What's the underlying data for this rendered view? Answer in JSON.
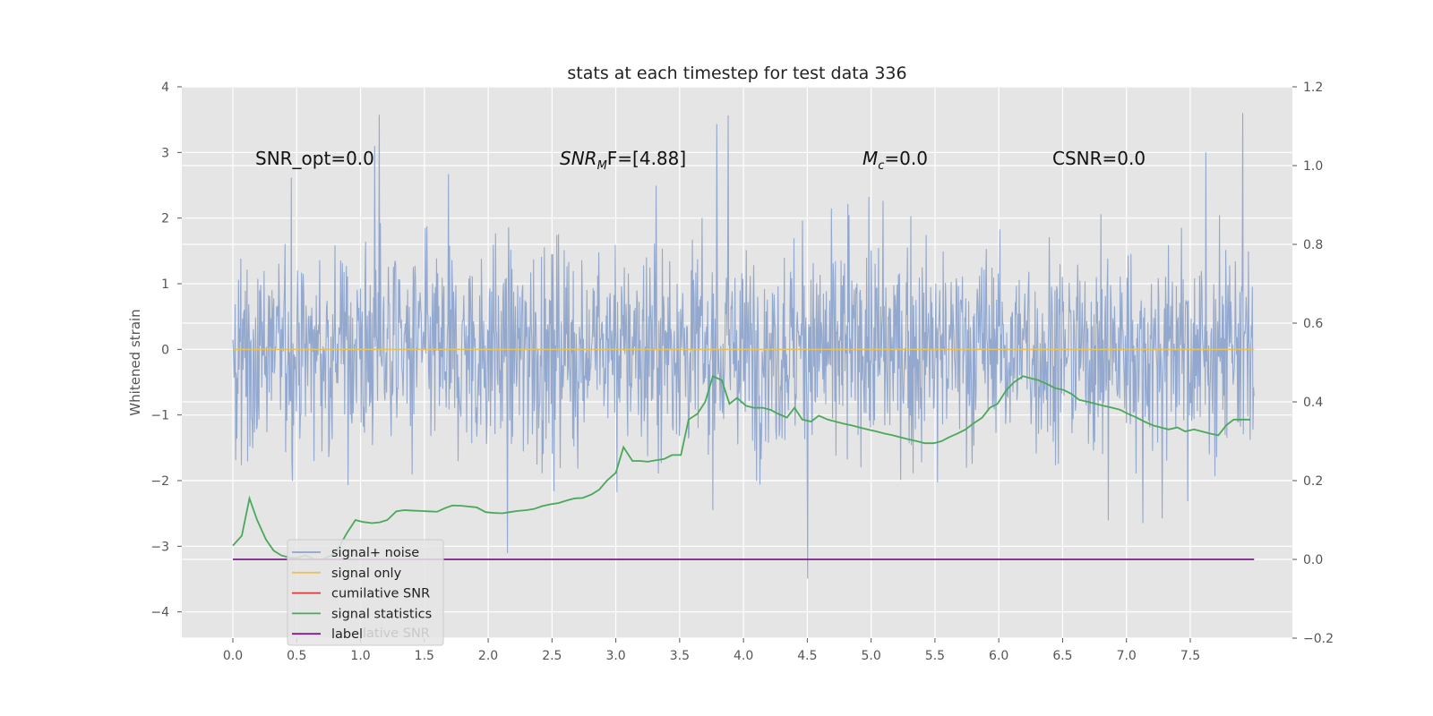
{
  "chart_data": {
    "type": "line",
    "title": "stats at each timestep for test data 336",
    "ylabel": "Whitened strain",
    "xlim": [
      -0.4,
      8.3
    ],
    "ylim": [
      -4.4,
      4.0
    ],
    "y2lim": [
      -0.2,
      1.2
    ],
    "x_ticks": [
      "0.0",
      "0.5",
      "1.0",
      "1.5",
      "2.0",
      "2.5",
      "3.0",
      "3.5",
      "4.0",
      "4.5",
      "5.0",
      "5.5",
      "6.0",
      "6.5",
      "7.0",
      "7.5"
    ],
    "y_ticks": [
      "4",
      "3",
      "2",
      "1",
      "0",
      "−1",
      "−2",
      "−3",
      "−4"
    ],
    "y2_ticks": [
      "1.2",
      "1.0",
      "0.8",
      "0.6",
      "0.4",
      "0.2",
      "0.0",
      "−0.2"
    ],
    "grid": true,
    "legend_position": "lower-left",
    "annotations": {
      "snr_opt": "SNR_opt=0.0",
      "snr_mf_base": "SNR",
      "snr_mf_sub": "M",
      "snr_mf_rest": "F=[4.88]",
      "mc_base": "M",
      "mc_sub": "c",
      "mc_rest": "=0.0",
      "csnr": "CSNR=0.0"
    },
    "legend": [
      {
        "label": "signal+ noise",
        "color": "#8ea4cc"
      },
      {
        "label": "signal only",
        "color": "#e8c15a"
      },
      {
        "label": "cumilative SNR",
        "color": "#d43f3a"
      },
      {
        "label": "signal statistics",
        "color": "#4aa85a"
      },
      {
        "label": "label",
        "color": "#7b1f86"
      }
    ],
    "legend_ghost_text": "lative SNR",
    "series": [
      {
        "name": "signal+ noise",
        "axis": "left",
        "style": "dense noisy trace",
        "x_range": [
          0.0,
          8.0
        ],
        "envelope_typical": [
          -2.2,
          2.2
        ],
        "envelope_extreme": [
          -4.0,
          3.6
        ],
        "color": "#8ea4cc"
      },
      {
        "name": "signal only",
        "axis": "left",
        "x": [
          0.0,
          8.0
        ],
        "y": [
          0.0,
          0.0
        ],
        "color": "#e8c15a"
      },
      {
        "name": "signal statistics",
        "axis": "right",
        "color": "#4aa85a",
        "x": [
          0.0,
          0.07,
          0.13,
          0.19,
          0.26,
          0.32,
          0.38,
          0.45,
          0.51,
          0.57,
          0.64,
          0.7,
          0.77,
          0.83,
          0.89,
          0.96,
          1.02,
          1.09,
          1.15,
          1.21,
          1.28,
          1.34,
          1.4,
          1.47,
          1.53,
          1.6,
          1.66,
          1.72,
          1.79,
          1.85,
          1.91,
          1.98,
          2.04,
          2.11,
          2.17,
          2.23,
          2.3,
          2.36,
          2.42,
          2.49,
          2.55,
          2.62,
          2.68,
          2.74,
          2.81,
          2.87,
          2.93,
          3.0,
          3.06,
          3.13,
          3.19,
          3.25,
          3.32,
          3.38,
          3.44,
          3.51,
          3.57,
          3.64,
          3.7,
          3.76,
          3.83,
          3.89,
          3.95,
          4.02,
          4.08,
          4.15,
          4.21,
          4.27,
          4.34,
          4.4,
          4.46,
          4.53,
          4.59,
          4.66,
          4.72,
          4.78,
          4.85,
          4.91,
          4.97,
          5.04,
          5.1,
          5.17,
          5.23,
          5.29,
          5.36,
          5.42,
          5.49,
          5.55,
          5.61,
          5.68,
          5.74,
          5.8,
          5.87,
          5.93,
          5.99,
          6.06,
          6.12,
          6.19,
          6.25,
          6.31,
          6.38,
          6.44,
          6.51,
          6.57,
          6.63,
          6.7,
          6.76,
          6.82,
          6.89,
          6.95,
          7.01,
          7.08,
          7.14,
          7.21,
          7.27,
          7.33,
          7.4,
          7.46,
          7.53,
          7.59,
          7.65,
          7.72,
          7.78,
          7.84,
          7.91,
          7.97
        ],
        "y": [
          0.035,
          0.06,
          0.155,
          0.1,
          0.05,
          0.022,
          0.01,
          0.004,
          0.004,
          0.01,
          0.0,
          0.0,
          0.01,
          0.03,
          0.065,
          0.1,
          0.095,
          0.092,
          0.094,
          0.1,
          0.122,
          0.125,
          0.124,
          0.123,
          0.122,
          0.121,
          0.13,
          0.137,
          0.136,
          0.134,
          0.132,
          0.12,
          0.118,
          0.117,
          0.12,
          0.123,
          0.125,
          0.128,
          0.135,
          0.14,
          0.143,
          0.15,
          0.155,
          0.156,
          0.165,
          0.177,
          0.2,
          0.22,
          0.285,
          0.25,
          0.25,
          0.248,
          0.252,
          0.255,
          0.265,
          0.265,
          0.355,
          0.37,
          0.4,
          0.465,
          0.455,
          0.395,
          0.41,
          0.39,
          0.385,
          0.385,
          0.38,
          0.37,
          0.36,
          0.385,
          0.355,
          0.35,
          0.365,
          0.355,
          0.35,
          0.345,
          0.34,
          0.335,
          0.33,
          0.325,
          0.32,
          0.315,
          0.31,
          0.305,
          0.3,
          0.295,
          0.295,
          0.3,
          0.31,
          0.32,
          0.33,
          0.345,
          0.36,
          0.385,
          0.395,
          0.43,
          0.45,
          0.465,
          0.46,
          0.455,
          0.445,
          0.435,
          0.43,
          0.42,
          0.405,
          0.4,
          0.395,
          0.39,
          0.385,
          0.38,
          0.37,
          0.36,
          0.35,
          0.34,
          0.335,
          0.33,
          0.335,
          0.325,
          0.33,
          0.325,
          0.32,
          0.315,
          0.34,
          0.355,
          0.355,
          0.355
        ]
      },
      {
        "name": "label",
        "axis": "right",
        "x": [
          0.0,
          8.0
        ],
        "y": [
          0.0,
          0.0
        ],
        "color": "#7b1f86"
      }
    ]
  }
}
